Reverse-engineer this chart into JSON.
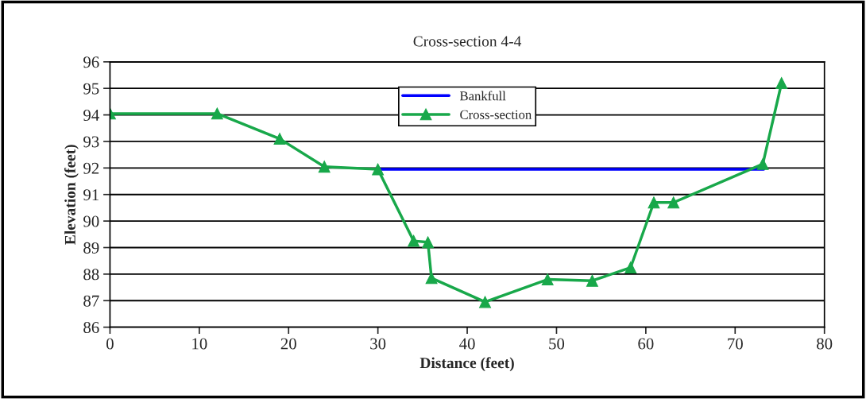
{
  "chart_data": {
    "type": "line",
    "title": "Cross-section 4-4",
    "xlabel": "Distance (feet)",
    "ylabel": "Elevation (feet)",
    "series": [
      {
        "name": "Bankfull",
        "color": "#0000ff",
        "x": [
          30,
          73.2
        ],
        "values": [
          91.95,
          91.95
        ],
        "marker": "none"
      },
      {
        "name": "Cross-section",
        "color": "#18a84a",
        "x": [
          0,
          12,
          19,
          24,
          30,
          34,
          35.6,
          36,
          42,
          49,
          54,
          58.3,
          60.9,
          63.1,
          73.1,
          75.2
        ],
        "values": [
          94.05,
          94.05,
          93.1,
          92.05,
          91.95,
          89.25,
          89.2,
          87.85,
          86.95,
          87.8,
          87.75,
          88.25,
          90.7,
          90.7,
          92.15,
          95.2
        ],
        "marker": "triangle"
      }
    ],
    "xlim": [
      0,
      80
    ],
    "xticks": [
      0,
      10,
      20,
      30,
      40,
      50,
      60,
      70,
      80
    ],
    "ylim": [
      86,
      96
    ],
    "yticks": [
      86,
      87,
      88,
      89,
      90,
      91,
      92,
      93,
      94,
      95,
      96
    ],
    "grid": "y",
    "legend": "top center"
  }
}
